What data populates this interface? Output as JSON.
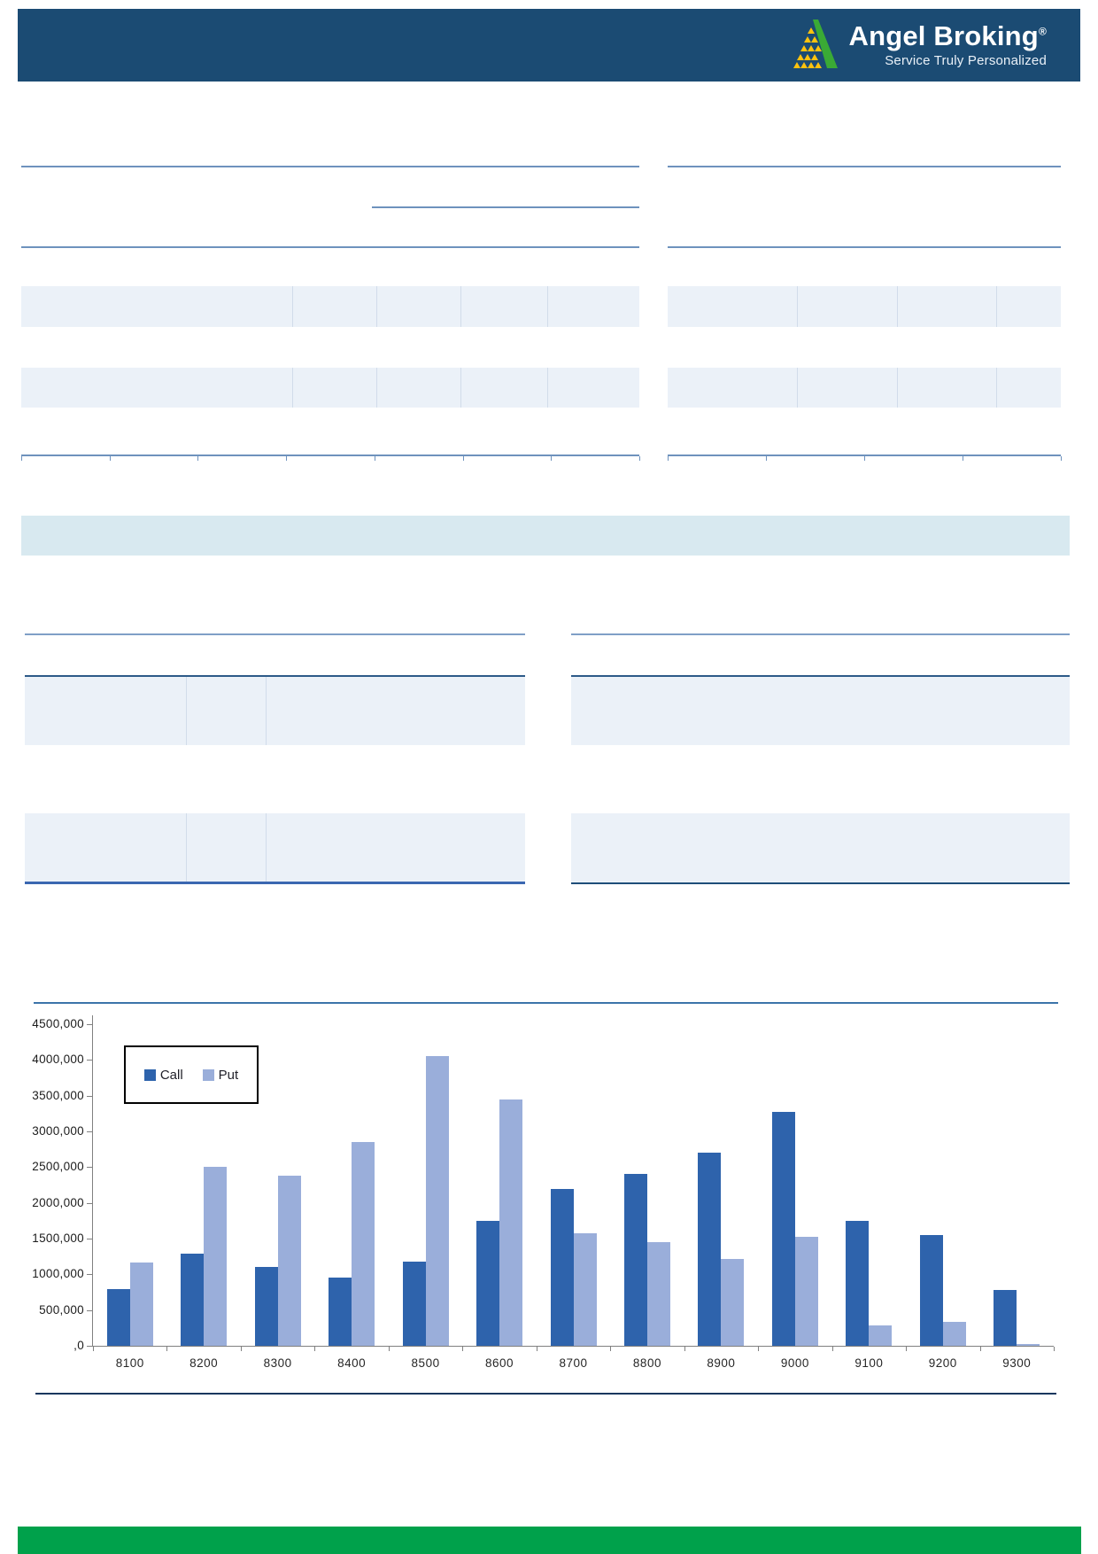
{
  "header": {
    "brand": "Angel Broking",
    "registered": "®",
    "tagline": "Service Truly Personalized"
  },
  "report": {
    "tables_note": "",
    "colors": {
      "header_navy": "#1b4b73",
      "rule_steel_blue": "#6e92bd",
      "rule_dark_blue": "#2d5a88",
      "row_stripe": "#ebf1f8",
      "teal_band": "#d8e9f0",
      "footer_green": "#00a14b",
      "call_bar": "#2e63ac",
      "put_bar": "#9aaeda"
    }
  },
  "chart_data": {
    "type": "bar",
    "title": "",
    "xlabel": "",
    "ylabel": "",
    "categories": [
      "8100",
      "8200",
      "8300",
      "8400",
      "8500",
      "8600",
      "8700",
      "8800",
      "8900",
      "9000",
      "9100",
      "9200",
      "9300"
    ],
    "series": [
      {
        "name": "Call",
        "color": "#2e63ac",
        "values": [
          790000,
          1290000,
          1100000,
          950000,
          1180000,
          1750000,
          2200000,
          2400000,
          2700000,
          3270000,
          1750000,
          1550000,
          780000
        ]
      },
      {
        "name": "Put",
        "color": "#9aaeda",
        "values": [
          1160000,
          2500000,
          2380000,
          2850000,
          4050000,
          3450000,
          1570000,
          1450000,
          1210000,
          1520000,
          290000,
          340000,
          30000
        ]
      }
    ],
    "ylim": [
      0,
      4500000
    ],
    "y_tick_labels": [
      "4500,000",
      "4000,000",
      "3500,000",
      "3000,000",
      "2500,000",
      "2000,000",
      "1500,000",
      "1000,000",
      "500,000",
      ",0"
    ],
    "grid": false,
    "legend_position": "top-left"
  }
}
